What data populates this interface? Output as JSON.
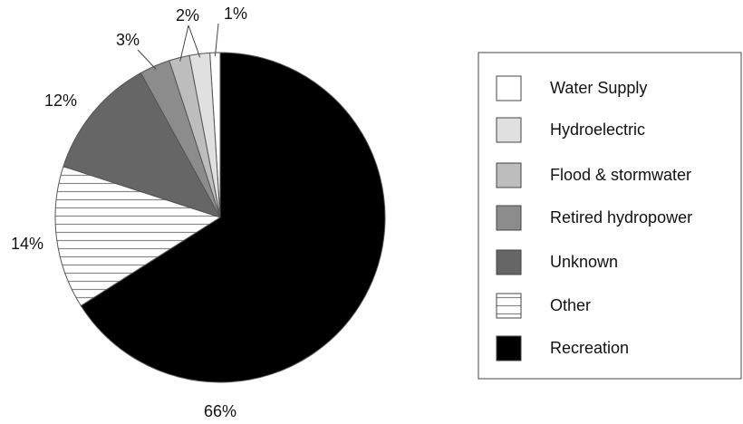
{
  "chart_data": {
    "type": "pie",
    "categories": [
      "Water Supply",
      "Hydroelectric",
      "Flood & stormwater",
      "Retired hydropower",
      "Unknown",
      "Other",
      "Recreation"
    ],
    "values": [
      1,
      2,
      2,
      3,
      12,
      14,
      66
    ],
    "value_labels": [
      "1%",
      "2%",
      null,
      "3%",
      "12%",
      "14%",
      "66%"
    ],
    "colors": [
      "#ffffff",
      "#e0e0e0",
      "#bdbdbd",
      "#8c8c8c",
      "#666666",
      "#ffffff",
      "#000000"
    ],
    "hatches": [
      null,
      null,
      null,
      null,
      null,
      "horizontal",
      null
    ],
    "legend": "right"
  }
}
